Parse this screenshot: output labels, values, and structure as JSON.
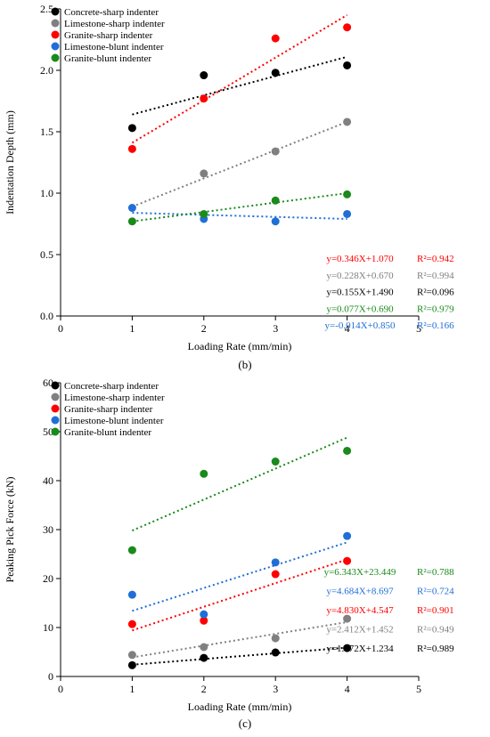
{
  "captions": [
    "(b)",
    "(c)"
  ],
  "chart_data": [
    {
      "type": "scatter",
      "title": "",
      "xlabel": "Loading Rate (mm/min)",
      "ylabel": "Indentation Depth (mm)",
      "xlim": [
        0,
        5
      ],
      "ylim": [
        0,
        2.5
      ],
      "xticks": [
        "0",
        "1",
        "2",
        "3",
        "4",
        "5"
      ],
      "yticks": [
        "0.0",
        "0.5",
        "1.0",
        "1.5",
        "2.0",
        "2.5"
      ],
      "grid": false,
      "legend": "top-left",
      "x": [
        1,
        2,
        3,
        4
      ],
      "series": [
        {
          "name": "Concrete-sharp indenter",
          "color": "#000000",
          "values": [
            1.53,
            1.96,
            1.98,
            2.04
          ],
          "fit": [
            1.64,
            2.11
          ],
          "equation": "y=0.155X+1.490",
          "r2": "R²=0.096",
          "eq_color": "#000000"
        },
        {
          "name": "Limestone-sharp indenter",
          "color": "#808080",
          "values": [
            null,
            1.16,
            1.34,
            1.58
          ],
          "fit": [
            0.89,
            1.58
          ],
          "equation": "y=0.228X+0.670",
          "r2": "R²=0.994",
          "eq_color": "#808080"
        },
        {
          "name": "Granite-sharp indenter",
          "color": "#ff0000",
          "values": [
            1.36,
            1.77,
            2.26,
            2.35
          ],
          "fit": [
            1.41,
            2.45
          ],
          "equation": "y=0.346X+1.070",
          "r2": "R²=0.942",
          "eq_color": "#ff0000"
        },
        {
          "name": "Limestone-blunt indenter",
          "color": "#1f6fd6",
          "values": [
            0.88,
            0.79,
            0.77,
            0.83
          ],
          "fit": [
            0.84,
            0.79
          ],
          "equation": "y=-0.014X+0.850",
          "r2": "R²=0.166",
          "eq_color": "#1f6fd6"
        },
        {
          "name": "Granite-blunt indenter",
          "color": "#1a8a1a",
          "values": [
            0.77,
            0.83,
            0.94,
            0.99
          ],
          "fit": [
            0.77,
            1.0
          ],
          "equation": "y=0.077X+0.690",
          "r2": "R²=0.979",
          "eq_color": "#1a8a1a"
        }
      ],
      "equation_order": [
        2,
        1,
        0,
        4,
        3
      ]
    },
    {
      "type": "scatter",
      "title": "",
      "xlabel": "Loading Rate (mm/min)",
      "ylabel": "Peaking Pick Force (kN)",
      "xlim": [
        0,
        5
      ],
      "ylim": [
        0,
        60
      ],
      "xticks": [
        "0",
        "1",
        "2",
        "3",
        "4",
        "5"
      ],
      "yticks": [
        "0",
        "10",
        "20",
        "30",
        "40",
        "50",
        "60"
      ],
      "grid": false,
      "legend": "top-left",
      "x": [
        1,
        2,
        3,
        4
      ],
      "series": [
        {
          "name": "Concrete-sharp indenter",
          "color": "#000000",
          "values": [
            2.3,
            3.8,
            4.9,
            5.8
          ],
          "fit": [
            2.4,
            5.9
          ],
          "equation": "y=1.172X+1.234",
          "r2": "R²=0.989",
          "eq_color": "#000000"
        },
        {
          "name": "Limestone-sharp indenter",
          "color": "#808080",
          "values": [
            4.4,
            6.0,
            7.8,
            11.8
          ],
          "fit": [
            3.9,
            11.1
          ],
          "equation": "y=2.412X+1.452",
          "r2": "R²=0.949",
          "eq_color": "#808080"
        },
        {
          "name": "Granite-sharp indenter",
          "color": "#ff0000",
          "values": [
            10.7,
            11.4,
            20.9,
            23.6
          ],
          "fit": [
            9.4,
            23.9
          ],
          "equation": "y=4.830X+4.547",
          "r2": "R²=0.901",
          "eq_color": "#ff0000"
        },
        {
          "name": "Limestone-blunt indenter",
          "color": "#1f6fd6",
          "values": [
            16.7,
            12.7,
            23.3,
            28.7
          ],
          "fit": [
            13.4,
            27.4
          ],
          "equation": "y=4.684X+8.697",
          "r2": "R²=0.724",
          "eq_color": "#1f6fd6"
        },
        {
          "name": "Granite-blunt indenter",
          "color": "#1a8a1a",
          "values": [
            25.8,
            41.4,
            43.9,
            46.1
          ],
          "fit": [
            29.8,
            48.8
          ],
          "equation": "y=6.343X+23.449",
          "r2": "R²=0.788",
          "eq_color": "#1a8a1a"
        }
      ],
      "equation_order": [
        4,
        3,
        2,
        1,
        0
      ]
    }
  ]
}
